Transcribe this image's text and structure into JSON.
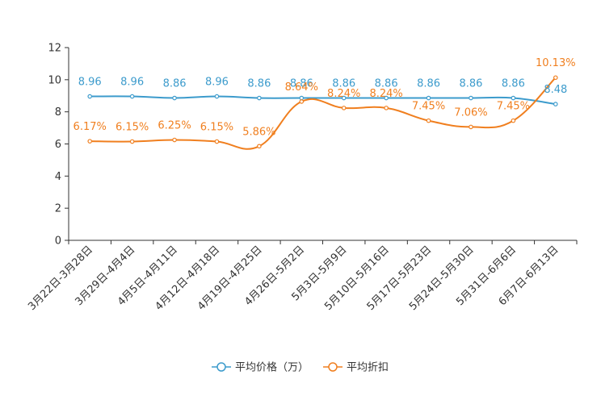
{
  "chart_data": {
    "type": "line",
    "title": "",
    "xlabel": "",
    "ylabel": "",
    "ylim": [
      0,
      12
    ],
    "yticks": [
      0,
      2,
      4,
      6,
      8,
      10,
      12
    ],
    "grid": false,
    "legend_position": "bottom",
    "categories": [
      "3月22日-3月28日",
      "3月29日-4月4日",
      "4月5日-4月11日",
      "4月12日-4月18日",
      "4月19日-4月25日",
      "4月26日-5月2日",
      "5月3日-5月9日",
      "5月10日-5月16日",
      "5月17日-5月23日",
      "5月24日-5月30日",
      "5月31日-6月6日",
      "6月7日-6月13日"
    ],
    "series": [
      {
        "name": "平均价格（万）",
        "color": "#3c9bcc",
        "values": [
          8.96,
          8.96,
          8.86,
          8.96,
          8.86,
          8.86,
          8.86,
          8.86,
          8.86,
          8.86,
          8.86,
          8.48
        ],
        "labels": [
          "8.96",
          "8.96",
          "8.86",
          "8.96",
          "8.86",
          "8.86",
          "8.86",
          "8.86",
          "8.86",
          "8.86",
          "8.86",
          "8.48"
        ]
      },
      {
        "name": "平均折扣",
        "color": "#f07f1f",
        "values": [
          6.17,
          6.15,
          6.25,
          6.15,
          5.86,
          8.64,
          8.24,
          8.24,
          7.45,
          7.06,
          7.45,
          10.13
        ],
        "labels": [
          "6.17%",
          "6.15%",
          "6.25%",
          "6.15%",
          "5.86%",
          "8.64%",
          "8.24%",
          "8.24%",
          "7.45%",
          "7.06%",
          "7.45%",
          "10.13%"
        ]
      }
    ]
  }
}
